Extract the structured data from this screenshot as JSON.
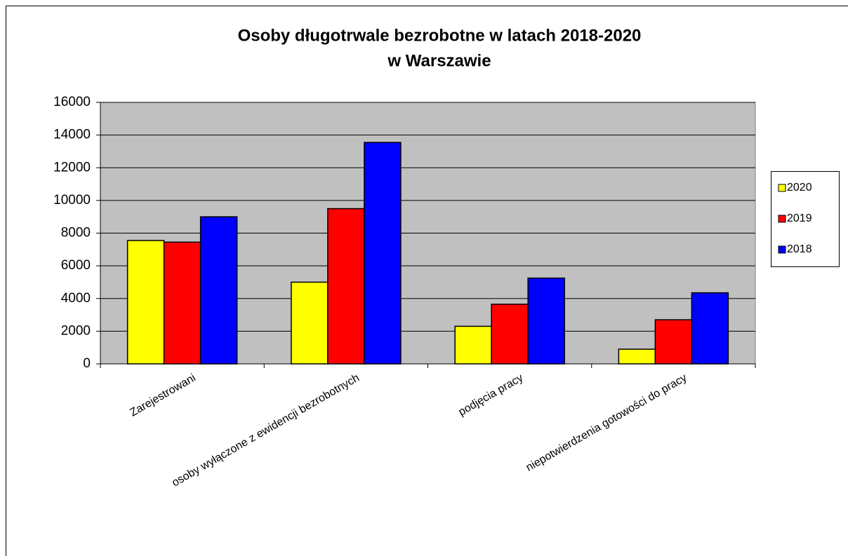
{
  "chart_data": {
    "type": "bar",
    "title": [
      "Osoby długotrwale bezrobotne w latach 2018-2020",
      "w Warszawie"
    ],
    "categories": [
      "Zarejestrowani",
      "osoby wyłączone z ewidencji bezrobotnych",
      "podjęcia pracy",
      "niepotwierdzenia gotowości do pracy"
    ],
    "series": [
      {
        "name": "2020",
        "color": "#ffff00",
        "values": [
          7550,
          5000,
          2300,
          900
        ]
      },
      {
        "name": "2019",
        "color": "#ff0000",
        "values": [
          7450,
          9500,
          3650,
          2700
        ]
      },
      {
        "name": "2018",
        "color": "#0000ff",
        "values": [
          9000,
          13550,
          5250,
          4350
        ]
      }
    ],
    "ylim": [
      0,
      16000
    ],
    "yticks": [
      0,
      2000,
      4000,
      6000,
      8000,
      10000,
      12000,
      14000,
      16000
    ],
    "grid": true,
    "legend": "right"
  }
}
